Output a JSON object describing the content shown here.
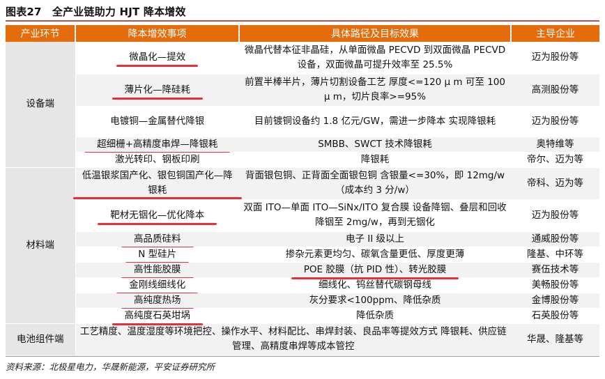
{
  "title": "图表27　全产业链助力 HJT 降本增效",
  "headers": [
    "产业环节",
    "降本增效事项",
    "具体路径及目标效果",
    "主导企业"
  ],
  "categories": {
    "equipment": "设备端",
    "materials": "材料端",
    "module": "电池组件端"
  },
  "rows": [
    {
      "item": "微晶化—提效",
      "path": "微晶代替本征非晶硅，从单面微晶 PECVD 到双面微晶 PECVD 设备，双面微晶可提升效率至 25.5%",
      "company": "迈为股份等"
    },
    {
      "item": "薄片化—降硅耗",
      "path": "前置半棒半片，薄片切割设备工艺 厚度<=120 μ m 可至 100 μ m，切片良率>=95%",
      "company": "高测股份等"
    },
    {
      "item": "电镀铜—金属替代降银",
      "path": "目前镀铜设备约 1.8 亿元/GW，需进一步降本 实现降银耗",
      "company": "迈为股份等"
    },
    {
      "item": "超细栅+高精度串焊—降银耗",
      "path": "SMBB、SWCT 技术降银耗",
      "company": "奥特维等"
    },
    {
      "item": "激光转印、钢板印刷",
      "path": "降银耗",
      "company": "帝尔、迈为等"
    },
    {
      "item": "低温银浆国产化、银包铜国产化—降银耗",
      "path": "背面银包铜、正背面全面银包铜 含银量<=30%，即 12mg/w（成本约 3 分/w）",
      "company": "帝科、迈为等"
    },
    {
      "item": "靶材无铟化—优化降本",
      "path": "双面 ITO—单面 ITO—SiNx/ITO 复合膜 设备降铟、叠层和回收降铟至 2mg/w，再到无铟化",
      "company": "迈为股份等"
    },
    {
      "item": "高品质硅料",
      "path": "电子 II 级以上",
      "company": "通威股份等"
    },
    {
      "item": "N 型硅片",
      "path": "掺杂元素更均匀、碳氧含量更低、厚度更薄",
      "company": "隆基、中环等"
    },
    {
      "item": "高性能胶膜",
      "path": "POE 胶膜（抗 PID 性）、转光胶膜",
      "company": "赛伍技术等"
    },
    {
      "item": "金刚线细线化",
      "path": "细线化、钨丝替代碳钢母线",
      "company": "美畅股份等"
    },
    {
      "item": "高纯度热场",
      "path": "灰分要求<100ppm、降低杂质",
      "company": "金博股份等"
    },
    {
      "item": "高纯度石英坩埚",
      "path": "降低杂质",
      "company": "石英股份等"
    },
    {
      "item": "",
      "path": "工艺精度、温度湿度等环境把控、操作水平、材料配比、串焊封装、良品率等提效方式 降银耗、供应链管理、高精度串焊等成本管控",
      "company": "华晟、隆基等"
    }
  ],
  "source": "资料来源：北极星电力，华晟新能源，平安证券研究所"
}
